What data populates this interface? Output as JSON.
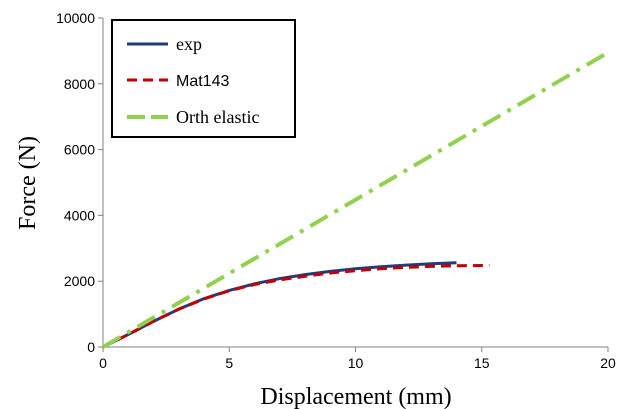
{
  "chart_data": {
    "type": "line",
    "xlabel": "Displacement (mm)",
    "ylabel": "Force (N)",
    "xlim": [
      0,
      20
    ],
    "ylim": [
      0,
      10000
    ],
    "xticks": [
      0,
      5,
      10,
      15,
      20
    ],
    "yticks": [
      0,
      2000,
      4000,
      6000,
      8000,
      10000
    ],
    "grid": false,
    "legend_position": "top-left",
    "series": [
      {
        "name": "exp",
        "color": "#1f3d7a",
        "style": "solid",
        "x": [
          0,
          1,
          2,
          3,
          4,
          5,
          6,
          7,
          8,
          9,
          10,
          11,
          12,
          13,
          14
        ],
        "y": [
          0,
          380,
          780,
          1150,
          1470,
          1720,
          1920,
          2080,
          2200,
          2300,
          2380,
          2440,
          2490,
          2530,
          2560
        ]
      },
      {
        "name": "Mat143",
        "color": "#c00000",
        "style": "dashed",
        "x": [
          0,
          1,
          2,
          3,
          4,
          5,
          6,
          7,
          8,
          9,
          10,
          11,
          12,
          13,
          14,
          15.3
        ],
        "y": [
          0,
          380,
          780,
          1150,
          1460,
          1710,
          1900,
          2040,
          2150,
          2250,
          2320,
          2380,
          2420,
          2450,
          2470,
          2480
        ]
      },
      {
        "name": "Orth elastic",
        "color": "#92d050",
        "style": "dashdot",
        "x": [
          0,
          20
        ],
        "y": [
          0,
          8950
        ]
      }
    ]
  }
}
